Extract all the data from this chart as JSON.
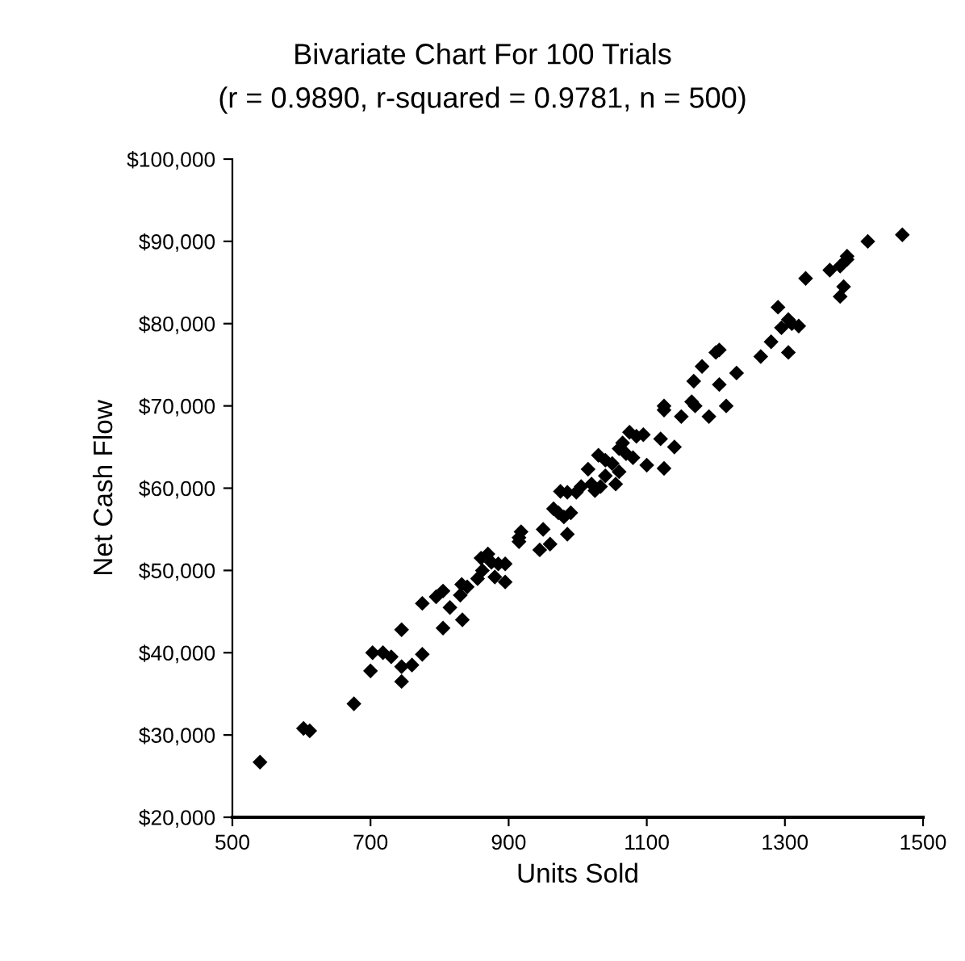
{
  "chart_data": {
    "type": "scatter",
    "title": "Bivariate Chart For 100 Trials",
    "subtitle": "(r = 0.9890, r-squared = 0.9781, n = 500)",
    "xlabel": "Units Sold",
    "ylabel": "Net Cash Flow",
    "xlim": [
      500,
      1500
    ],
    "xticks": [
      500,
      700,
      900,
      1100,
      1300,
      1500
    ],
    "ylim": [
      20000,
      100000
    ],
    "yticks": [
      {
        "value": 20000,
        "label": "$20,000"
      },
      {
        "value": 30000,
        "label": "$30,000"
      },
      {
        "value": 40000,
        "label": "$40,000"
      },
      {
        "value": 50000,
        "label": "$50,000"
      },
      {
        "value": 60000,
        "label": "$60,000"
      },
      {
        "value": 70000,
        "label": "$70,000"
      },
      {
        "value": 80000,
        "label": "$80,000"
      },
      {
        "value": 90000,
        "label": "$90,000"
      },
      {
        "value": 100000,
        "label": "$100,000"
      }
    ],
    "grid": false,
    "marker": "diamond",
    "series": [
      {
        "color": "#000000",
        "x": [
          540,
          603,
          612,
          676,
          700,
          703,
          718,
          730,
          745,
          745,
          760,
          745,
          775,
          775,
          795,
          805,
          805,
          815,
          830,
          832,
          833,
          840,
          855,
          860,
          862,
          870,
          875,
          880,
          885,
          895,
          895,
          915,
          918,
          915,
          945,
          950,
          960,
          965,
          972,
          975,
          980,
          985,
          990,
          985,
          998,
          1005,
          1015,
          1020,
          1025,
          1030,
          1033,
          1040,
          1040,
          1050,
          1055,
          1060,
          1060,
          1065,
          1070,
          1075,
          1080,
          1085,
          1095,
          1100,
          1120,
          1125,
          1125,
          1125,
          1140,
          1150,
          1165,
          1170,
          1168,
          1180,
          1190,
          1200,
          1205,
          1205,
          1215,
          1230,
          1265,
          1280,
          1290,
          1295,
          1305,
          1305,
          1310,
          1320,
          1330,
          1365,
          1380,
          1380,
          1385,
          1390,
          1390,
          1420,
          1470
        ],
        "values": [
          26700,
          30800,
          30500,
          33800,
          37800,
          40000,
          40000,
          39500,
          38300,
          36500,
          38500,
          42800,
          39800,
          46000,
          46800,
          47500,
          43000,
          45500,
          47000,
          48300,
          44000,
          48000,
          49000,
          51500,
          50000,
          52000,
          51000,
          49200,
          50800,
          48600,
          50800,
          54000,
          54700,
          53500,
          52500,
          55000,
          53200,
          57500,
          57000,
          59600,
          56500,
          54400,
          57000,
          59500,
          59500,
          60200,
          62300,
          60500,
          59700,
          64000,
          60200,
          61500,
          63400,
          63000,
          60500,
          62000,
          64800,
          65500,
          64200,
          66800,
          63700,
          66300,
          66500,
          62800,
          66000,
          69500,
          70000,
          62400,
          65000,
          68700,
          70500,
          70000,
          73000,
          74800,
          68700,
          76500,
          76800,
          72600,
          70000,
          74000,
          76000,
          77800,
          82000,
          79500,
          76500,
          80500,
          80000,
          79700,
          85500,
          86500,
          87000,
          83300,
          84500,
          87800,
          88200,
          90000,
          90800
        ]
      }
    ]
  }
}
